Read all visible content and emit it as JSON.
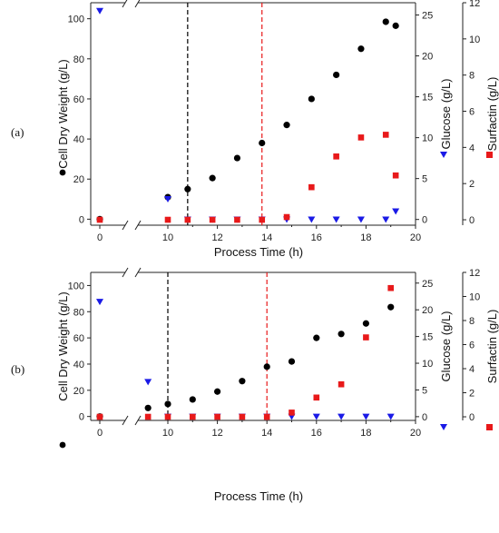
{
  "chart_data": [
    {
      "type": "scatter",
      "panel_label": "(a)",
      "xlabel": "Process Time (h)",
      "x_break": [
        0.5,
        9.5
      ],
      "x_ticks": [
        0,
        10,
        12,
        14,
        16,
        18,
        20
      ],
      "xlim": [
        -0.6,
        20
      ],
      "left_axis": {
        "label": "Cell Dry Weight (g/L)",
        "ylim": [
          -3,
          108
        ],
        "ticks": [
          0,
          20,
          40,
          60,
          80,
          100
        ]
      },
      "right_axis_1": {
        "label": "Glucose (g/L)",
        "ylim": [
          -0.7,
          26.5
        ],
        "ticks": [
          0,
          5,
          10,
          15,
          20,
          25
        ]
      },
      "right_axis_2": {
        "label": "Surfactin (g/L)",
        "ylim": [
          -0.3,
          12
        ],
        "ticks": [
          0,
          2,
          4,
          6,
          8,
          10,
          12
        ]
      },
      "vlines": [
        {
          "x": 10.8,
          "color": "#000000"
        },
        {
          "x": 13.8,
          "color": "#e8191a"
        }
      ],
      "series": [
        {
          "axis": "left",
          "color": "#000000",
          "marker": "circle",
          "x": [
            0,
            10,
            10.8,
            11.8,
            12.8,
            13.8,
            14.8,
            15.8,
            16.8,
            17.8,
            18.8,
            19.2
          ],
          "y": [
            0,
            11,
            15,
            20.5,
            30.5,
            38,
            47,
            60,
            72,
            85,
            98.5,
            96.5
          ]
        },
        {
          "axis": "right_axis_1",
          "color": "#1a1ae6",
          "marker": "triangle-down",
          "x": [
            0,
            10,
            10.8,
            11.8,
            12.8,
            13.8,
            14.8,
            15.8,
            16.8,
            17.8,
            18.8,
            19.2
          ],
          "y": [
            25.5,
            2.5,
            0,
            0,
            0,
            0,
            0,
            0,
            0,
            0,
            0,
            1
          ]
        },
        {
          "axis": "right_axis_2",
          "color": "#e8191a",
          "marker": "square",
          "x": [
            0,
            10,
            10.8,
            11.8,
            12.8,
            13.8,
            14.8,
            15.8,
            16.8,
            17.8,
            18.8,
            19.2
          ],
          "y": [
            0,
            0,
            0,
            0,
            0,
            0,
            0.15,
            1.8,
            3.5,
            4.55,
            4.7,
            2.45
          ]
        }
      ]
    },
    {
      "type": "scatter",
      "panel_label": "(b)",
      "xlabel": "Process Time (h)",
      "x_break": [
        0.5,
        8.5
      ],
      "x_ticks": [
        0,
        10,
        12,
        14,
        16,
        18,
        20
      ],
      "xlim": [
        -0.6,
        20
      ],
      "left_axis": {
        "label": "Cell Dry Weight (g/L)",
        "ylim": [
          -3,
          110
        ],
        "ticks": [
          0,
          20,
          40,
          60,
          80,
          100
        ]
      },
      "right_axis_1": {
        "label": "Glucose (g/L)",
        "ylim": [
          -0.7,
          27
        ],
        "ticks": [
          0,
          5,
          10,
          15,
          20,
          25
        ]
      },
      "right_axis_2": {
        "label": "Surfactin (g/L)",
        "ylim": [
          -0.3,
          12
        ],
        "ticks": [
          0,
          2,
          4,
          6,
          8,
          10,
          12
        ]
      },
      "vlines": [
        {
          "x": 10,
          "color": "#000000"
        },
        {
          "x": 14,
          "color": "#e8191a"
        }
      ],
      "series": [
        {
          "axis": "left",
          "color": "#000000",
          "marker": "circle",
          "x": [
            0,
            9.2,
            10,
            11,
            12,
            13,
            14,
            15,
            16,
            17,
            18,
            19
          ],
          "y": [
            0,
            6.5,
            9.5,
            13,
            19,
            27,
            38,
            42,
            60,
            63,
            71,
            83.5
          ]
        },
        {
          "axis": "right_axis_1",
          "color": "#1a1ae6",
          "marker": "triangle-down",
          "x": [
            0,
            9.2,
            10,
            11,
            12,
            13,
            14,
            15,
            16,
            17,
            18,
            19
          ],
          "y": [
            21.5,
            6.5,
            0,
            0,
            0,
            0,
            0,
            0,
            0,
            0,
            0,
            0
          ]
        },
        {
          "axis": "right_axis_2",
          "color": "#e8191a",
          "marker": "square",
          "x": [
            0,
            9.2,
            10,
            11,
            12,
            13,
            14,
            15,
            16,
            17,
            18,
            19
          ],
          "y": [
            0,
            0,
            0,
            0,
            0,
            0,
            0,
            0.35,
            1.6,
            2.7,
            6.6,
            10.7
          ]
        }
      ]
    }
  ]
}
